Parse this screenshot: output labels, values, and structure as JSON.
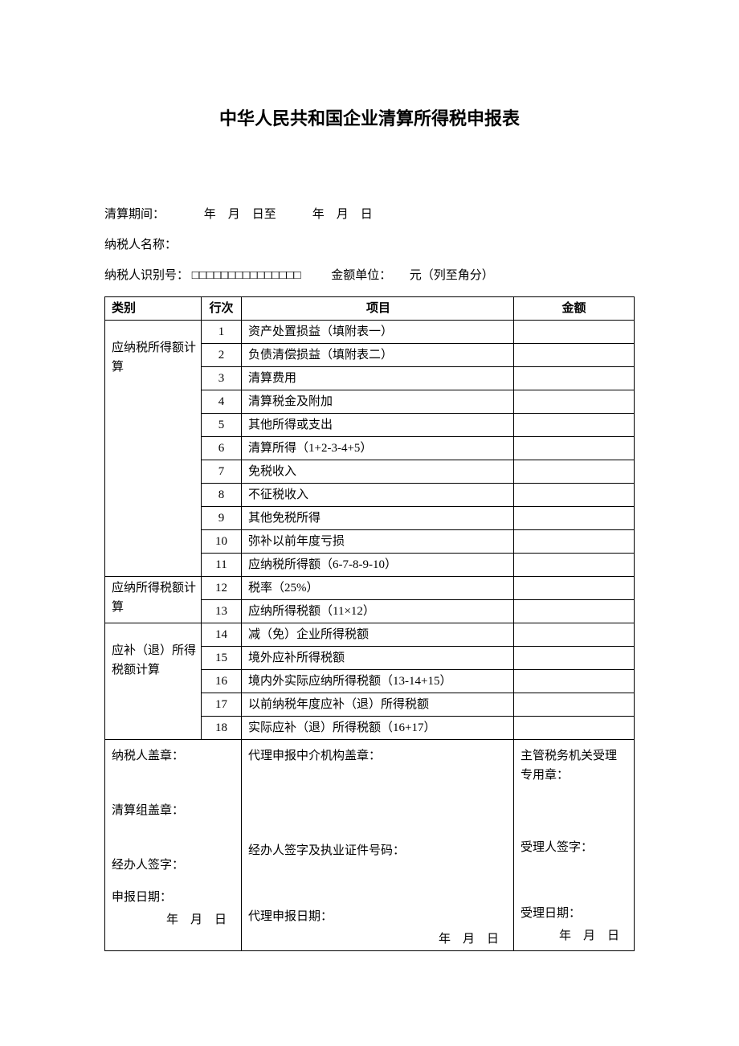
{
  "title": "中华人民共和国企业清算所得税申报表",
  "header": {
    "period_label": "清算期间：",
    "period_text": "　　　年　月　日至　　　年　月　日",
    "taxpayer_name_label": "纳税人名称：",
    "taxpayer_id_label": "纳税人识别号：",
    "taxpayer_id_boxes": "□□□□□□□□□□□□□□□",
    "unit_label": "金额单位：",
    "unit_value": "元（列至角分）"
  },
  "table": {
    "headers": {
      "category": "类别",
      "row": "行次",
      "item": "项目",
      "amount": "金额"
    },
    "categories": [
      {
        "label": "应纳税所得额计算",
        "rowspan": 11,
        "rows": [
          {
            "num": "1",
            "item": "资产处置损益（填附表一）",
            "amount": ""
          },
          {
            "num": "2",
            "item": "负债清偿损益（填附表二）",
            "amount": ""
          },
          {
            "num": "3",
            "item": "清算费用",
            "amount": ""
          },
          {
            "num": "4",
            "item": "清算税金及附加",
            "amount": ""
          },
          {
            "num": "5",
            "item": "其他所得或支出",
            "amount": ""
          },
          {
            "num": "6",
            "item": "清算所得（1+2-3-4+5）",
            "amount": ""
          },
          {
            "num": "7",
            "item": "免税收入",
            "amount": ""
          },
          {
            "num": "8",
            "item": "不征税收入",
            "amount": ""
          },
          {
            "num": "9",
            "item": "其他免税所得",
            "amount": ""
          },
          {
            "num": "10",
            "item": "弥补以前年度亏损",
            "amount": ""
          },
          {
            "num": "11",
            "item": "应纳税所得额（6-7-8-9-10）",
            "amount": ""
          }
        ]
      },
      {
        "label": "应纳所得税额计算",
        "rowspan": 2,
        "rows": [
          {
            "num": "12",
            "item": "税率（25%）",
            "amount": ""
          },
          {
            "num": "13",
            "item": "应纳所得税额（11×12）",
            "amount": ""
          }
        ]
      },
      {
        "label": "应补（退）所得税额计算",
        "rowspan": 5,
        "rows": [
          {
            "num": "14",
            "item": "减（免）企业所得税额",
            "amount": ""
          },
          {
            "num": "15",
            "item": "境外应补所得税额",
            "amount": ""
          },
          {
            "num": "16",
            "item": "境内外实际应纳所得税额（13-14+15）",
            "amount": ""
          },
          {
            "num": "17",
            "item": "以前纳税年度应补（退）所得税额",
            "amount": ""
          },
          {
            "num": "18",
            "item": "实际应补（退）所得税额（16+17）",
            "amount": ""
          }
        ]
      }
    ]
  },
  "footer": {
    "col1": {
      "taxpayer_seal": "纳税人盖章：",
      "liquidation_seal": "清算组盖章：",
      "handler_sign": "经办人签字：",
      "declare_date_label": "申报日期：",
      "date_text": "年　月　日"
    },
    "col2": {
      "agent_seal": "代理申报中介机构盖章：",
      "agent_sign": "经办人签字及执业证件号码：",
      "agent_date_label": "代理申报日期：",
      "date_text": "年　月　日"
    },
    "col3": {
      "authority_seal": "主管税务机关受理专用章：",
      "acceptor_sign": "受理人签字：",
      "accept_date_label": "受理日期：",
      "date_text": "年　月　日"
    }
  }
}
